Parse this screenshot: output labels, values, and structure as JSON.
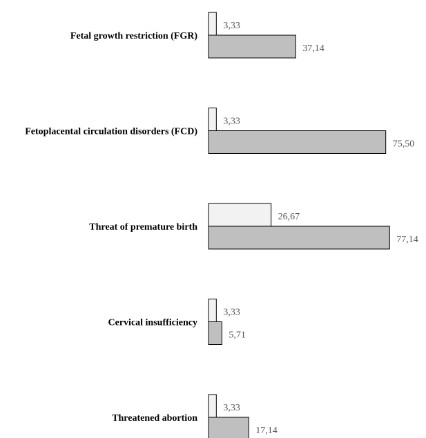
{
  "chart_data": {
    "type": "bar",
    "orientation": "horizontal",
    "categories": [
      "Fetal growth restriction (FGR)",
      "Fetoplacental circulation disorders (FCD)",
      "Threat of premature birth",
      "Cervical insufficiency",
      "Threatened abortion"
    ],
    "series": [
      {
        "values": [
          3.33,
          3.33,
          26.67,
          3.33,
          3.33
        ],
        "labels": [
          "3,33",
          "3,33",
          "26,67",
          "3,33",
          "3,33"
        ],
        "color": "#f2f2f2"
      },
      {
        "values": [
          37.14,
          75.5,
          77.14,
          5.71,
          17.14
        ],
        "labels": [
          "37,14",
          "75,50",
          "77,14",
          "5,71",
          "17,14"
        ],
        "color": "#bfbfbf"
      }
    ],
    "xlim": [
      0,
      100
    ],
    "grid": false,
    "legend": "none"
  }
}
